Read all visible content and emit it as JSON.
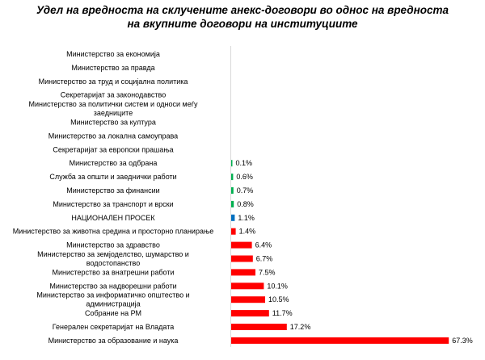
{
  "chart_data": {
    "type": "bar",
    "orientation": "horizontal",
    "title_lines": [
      "Удел на вредноста на склучените анекс-договори во однос на вредноста",
      "на вкупните договори на институциите"
    ],
    "categories": [
      "Министерство за економија",
      "Министерство за правда",
      "Министерство за труд и социјална политика",
      "Секретаријат за законодавство",
      "Министерство за политички систем и односи меѓу заедниците",
      "Министерство за култура",
      "Министерство за локална самоуправа",
      "Секретаријат за европски прашања",
      "Министерство за одбрана",
      "Служба за општи и заеднички работи",
      "Министерство за финансии",
      "Министерство за транспорт и врски",
      "НАЦИОНАЛЕН ПРОСЕК",
      "Министерство за животна средина и просторно планирање",
      "Министерство за здравство",
      "Министерство за земјоделство, шумарство и водостопанство",
      "Министерство за внатрешни работи",
      "Министерство за надворешни работи",
      "Министерство за информатичко општество и администрација",
      "Собрание на РМ",
      "Генерален секретаријат на Владата",
      "Министерство за образование и наука"
    ],
    "label_lines": [
      [
        "Министерство за економија"
      ],
      [
        "Министерство за правда"
      ],
      [
        "Министерство за труд и социјална политика"
      ],
      [
        "Секретаријат за законодавство"
      ],
      [
        "Министерство за политички систем и односи меѓу",
        "заедниците"
      ],
      [
        "Министерство за култура"
      ],
      [
        "Министерство за локална самоуправа"
      ],
      [
        "Секретаријат за европски прашања"
      ],
      [
        "Министерство за одбрана"
      ],
      [
        "Служба за општи и заеднички работи"
      ],
      [
        "Министерство за финансии"
      ],
      [
        "Министерство за транспорт и врски"
      ],
      [
        "НАЦИОНАЛЕН ПРОСЕК"
      ],
      [
        "Министерство за животна средина и просторно планирање"
      ],
      [
        "Министерство за здравство"
      ],
      [
        "Министерство за земјоделство, шумарство и",
        "водостопанство"
      ],
      [
        "Министерство за внатрешни работи"
      ],
      [
        "Министерство за надворешни работи"
      ],
      [
        "Министерство за информатичко општество и",
        "администрација"
      ],
      [
        "Собрание на РМ"
      ],
      [
        "Генерален секретаријат на Владата"
      ],
      [
        "Министерство за образование и наука"
      ]
    ],
    "values": [
      null,
      null,
      null,
      null,
      null,
      null,
      null,
      null,
      0.1,
      0.6,
      0.7,
      0.8,
      1.1,
      1.4,
      6.4,
      6.7,
      7.5,
      10.1,
      10.5,
      11.7,
      17.2,
      67.3
    ],
    "value_labels": [
      "",
      "",
      "",
      "",
      "",
      "",
      "",
      "",
      "0.1%",
      "0.6%",
      "0.7%",
      "0.8%",
      "1.1%",
      "1.4%",
      "6.4%",
      "6.7%",
      "7.5%",
      "10.1%",
      "10.5%",
      "11.7%",
      "17.2%",
      "67.3%"
    ],
    "bar_colors": [
      "#ff0000",
      "#ff0000",
      "#ff0000",
      "#ff0000",
      "#ff0000",
      "#ff0000",
      "#ff0000",
      "#ff0000",
      "#00b050",
      "#00b050",
      "#00b050",
      "#00b050",
      "#0070c0",
      "#ff0000",
      "#ff0000",
      "#ff0000",
      "#ff0000",
      "#ff0000",
      "#ff0000",
      "#ff0000",
      "#ff0000",
      "#ff0000"
    ],
    "xlim": [
      0,
      70
    ],
    "grid": false,
    "legend": "none"
  }
}
